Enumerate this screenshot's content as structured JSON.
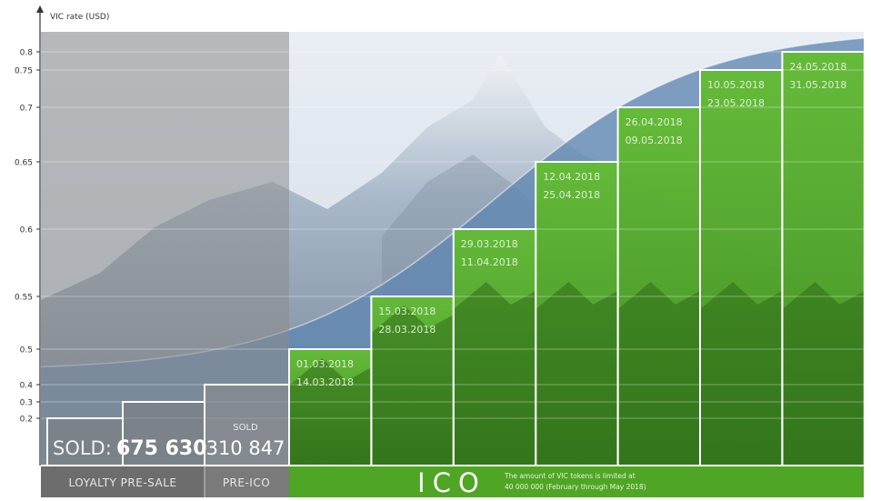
{
  "chart_data": {
    "type": "bar",
    "ylabel": "VIC rate (USD)",
    "y_ticks": [
      0.2,
      0.3,
      0.4,
      0.5,
      0.55,
      0.6,
      0.65,
      0.7,
      0.75,
      0.8
    ],
    "ylim": [
      0.15,
      0.84
    ],
    "y_scale": "non-linear (as printed tick spacing)",
    "grid": "horizontal gridlines at each tick",
    "background": "mountain landscape; grey for pre-sale phases, blue sky, green tint for ICO",
    "curve": "smooth rising curve from ~0.45 to ~0.83",
    "stages": [
      {
        "phase": "LOYALTY PRE-SALE",
        "value": 0.2,
        "dates": []
      },
      {
        "phase": "LOYALTY PRE-SALE",
        "value": 0.3,
        "dates": []
      },
      {
        "phase": "PRE-ICO",
        "value": 0.4,
        "dates": []
      },
      {
        "phase": "ICO",
        "value": 0.5,
        "dates": [
          "01.03.2018",
          "14.03.2018"
        ]
      },
      {
        "phase": "ICO",
        "value": 0.55,
        "dates": [
          "15.03.2018",
          "28.03.2018"
        ]
      },
      {
        "phase": "ICO",
        "value": 0.6,
        "dates": [
          "29.03.2018",
          "11.04.2018"
        ]
      },
      {
        "phase": "ICO",
        "value": 0.65,
        "dates": [
          "12.04.2018",
          "25.04.2018"
        ]
      },
      {
        "phase": "ICO",
        "value": 0.7,
        "dates": [
          "26.04.2018",
          "09.05.2018"
        ]
      },
      {
        "phase": "ICO",
        "value": 0.75,
        "dates": [
          "10.05.2018",
          "23.05.2018"
        ]
      },
      {
        "phase": "ICO",
        "value": 0.8,
        "dates": [
          "24.05.2018",
          "31.05.2018"
        ]
      }
    ],
    "sold": {
      "loyalty_label": "SOLD:",
      "loyalty_value": "675 630",
      "preico_label": "SOLD",
      "preico_value": "310 847"
    },
    "phases": {
      "loyalty": "LOYALTY PRE-SALE",
      "preico": "PRE-ICO",
      "ico": "ICO",
      "ico_note_1": "The amount of VIC tokens is limited at",
      "ico_note_2": "40 000 000 (February through May 2018)"
    },
    "colors": {
      "green": "#5cb82b",
      "grey": "#8c8c8c",
      "blue": "#5f86b2",
      "footer_grey": "#6d6d6d",
      "footer_green": "#4fa524"
    }
  }
}
